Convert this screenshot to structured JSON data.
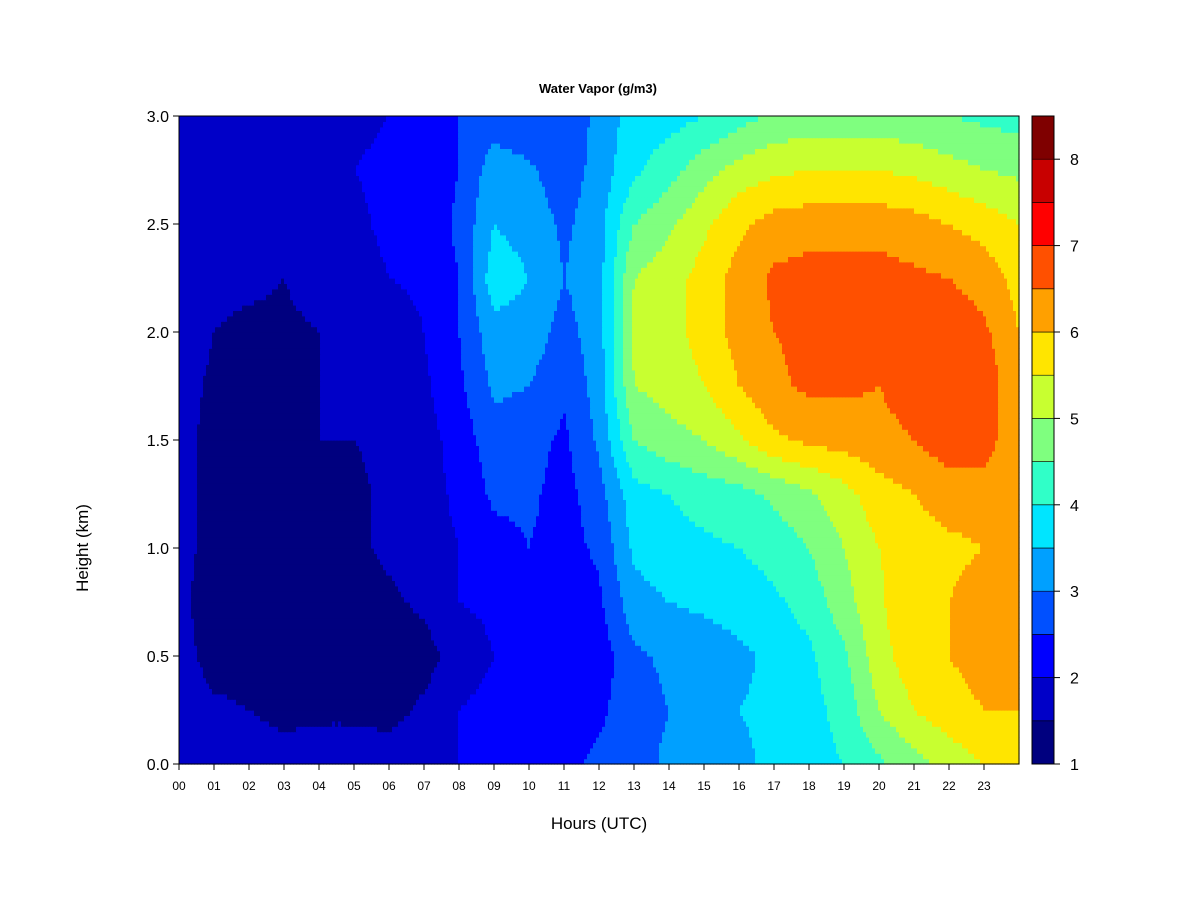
{
  "chart_data": {
    "type": "heatmap",
    "title": "Water Vapor (g/m3)",
    "xlabel": "Hours (UTC)",
    "ylabel": "Height (km)",
    "xlim": [
      0,
      24
    ],
    "ylim": [
      0.0,
      3.0
    ],
    "x_ticks": [
      "00",
      "01",
      "02",
      "03",
      "04",
      "05",
      "06",
      "07",
      "08",
      "09",
      "10",
      "11",
      "12",
      "13",
      "14",
      "15",
      "16",
      "17",
      "18",
      "19",
      "20",
      "21",
      "22",
      "23"
    ],
    "y_ticks": [
      "0.0",
      "0.5",
      "1.0",
      "1.5",
      "2.0",
      "2.5",
      "3.0"
    ],
    "colorbar": {
      "range": [
        1,
        8.5
      ],
      "ticks": [
        "1",
        "2",
        "3",
        "4",
        "5",
        "6",
        "7",
        "8"
      ],
      "colors": [
        "#00007F",
        "#0000C8",
        "#0000FF",
        "#0050FF",
        "#00A0FF",
        "#00E5FF",
        "#30FFC8",
        "#7FFF7F",
        "#C8FF30",
        "#FFE500",
        "#FFA000",
        "#FF5000",
        "#FF0000",
        "#C80000",
        "#7F0000"
      ]
    },
    "z_x": [
      0,
      1,
      2,
      3,
      4,
      5,
      6,
      7,
      8,
      9,
      10,
      11,
      12,
      13,
      14,
      15,
      16,
      17,
      18,
      19,
      20,
      21,
      22,
      23,
      24
    ],
    "z_y": [
      0.0,
      0.25,
      0.5,
      0.75,
      1.0,
      1.25,
      1.5,
      1.75,
      2.0,
      2.25,
      2.5,
      2.75,
      3.0
    ],
    "z": [
      [
        1.5,
        2.0,
        1.9,
        1.8,
        1.8,
        1.8,
        1.8,
        2.0,
        2.0,
        2.5,
        2.4,
        2.4,
        2.6,
        2.8,
        3.1,
        3.3,
        3.4,
        3.6,
        3.8,
        4.0,
        4.4,
        4.8,
        5.2,
        5.5,
        5.5
      ],
      [
        1.8,
        1.6,
        1.5,
        1.3,
        1.4,
        1.4,
        1.3,
        1.6,
        2.0,
        2.2,
        2.5,
        2.3,
        2.4,
        2.8,
        3.0,
        3.3,
        3.5,
        3.6,
        3.8,
        4.2,
        5.0,
        5.5,
        5.8,
        6.0,
        6.0
      ],
      [
        1.7,
        1.3,
        1.3,
        1.2,
        1.2,
        1.2,
        1.2,
        1.3,
        1.7,
        2.0,
        2.2,
        2.0,
        2.2,
        2.9,
        3.1,
        3.2,
        3.4,
        3.6,
        3.9,
        4.4,
        5.3,
        5.8,
        6.0,
        6.2,
        6.2
      ],
      [
        1.6,
        1.3,
        1.3,
        1.3,
        1.3,
        1.3,
        1.4,
        1.6,
        2.0,
        2.1,
        2.4,
        2.1,
        2.4,
        3.3,
        3.5,
        3.6,
        3.7,
        3.9,
        4.2,
        4.8,
        5.4,
        6.0,
        6.0,
        6.2,
        6.2
      ],
      [
        1.6,
        1.4,
        1.4,
        1.4,
        1.4,
        1.4,
        1.6,
        1.8,
        2.0,
        2.3,
        2.5,
        2.3,
        2.6,
        3.6,
        3.8,
        3.9,
        4.0,
        4.2,
        4.5,
        5.0,
        5.5,
        5.8,
        5.9,
        6.0,
        6.0
      ],
      [
        1.6,
        1.4,
        1.4,
        1.4,
        1.4,
        1.4,
        1.6,
        1.8,
        2.1,
        2.6,
        2.6,
        2.3,
        2.8,
        3.8,
        4.0,
        4.2,
        4.3,
        4.6,
        4.9,
        5.3,
        5.8,
        6.0,
        6.2,
        6.2,
        6.0
      ],
      [
        1.6,
        1.4,
        1.4,
        1.4,
        1.5,
        1.5,
        1.6,
        1.8,
        2.2,
        2.8,
        2.7,
        2.4,
        3.1,
        4.5,
        4.8,
        5.0,
        5.4,
        5.9,
        6.1,
        6.2,
        6.3,
        6.5,
        6.8,
        6.8,
        6.0
      ],
      [
        1.7,
        1.4,
        1.4,
        1.4,
        1.5,
        1.5,
        1.6,
        1.9,
        2.4,
        3.1,
        3.0,
        2.6,
        3.2,
        5.0,
        5.2,
        5.5,
        6.0,
        6.4,
        6.6,
        6.6,
        6.5,
        6.8,
        6.9,
        6.9,
        6.0
      ],
      [
        1.8,
        1.5,
        1.4,
        1.4,
        1.5,
        1.6,
        1.7,
        2.0,
        2.5,
        3.3,
        3.3,
        2.8,
        3.3,
        5.1,
        5.3,
        5.7,
        6.2,
        6.5,
        6.6,
        6.6,
        6.6,
        6.8,
        6.8,
        6.6,
        6.0
      ],
      [
        2.0,
        1.6,
        1.6,
        1.5,
        1.7,
        1.8,
        2.0,
        2.1,
        2.5,
        3.8,
        3.5,
        3.0,
        3.3,
        5.0,
        5.3,
        5.7,
        6.2,
        6.6,
        6.7,
        6.7,
        6.7,
        6.6,
        6.5,
        6.3,
        5.8
      ],
      [
        2.0,
        1.8,
        1.8,
        1.8,
        1.9,
        1.9,
        2.1,
        2.2,
        2.6,
        3.5,
        3.3,
        2.9,
        3.3,
        4.5,
        4.9,
        5.4,
        5.9,
        6.2,
        6.3,
        6.3,
        6.3,
        6.2,
        6.0,
        5.8,
        5.5
      ],
      [
        2.0,
        1.7,
        1.8,
        1.9,
        2.0,
        2.0,
        2.1,
        2.2,
        2.5,
        3.3,
        3.1,
        2.7,
        3.2,
        3.9,
        4.3,
        4.8,
        5.2,
        5.4,
        5.5,
        5.5,
        5.5,
        5.4,
        5.2,
        5.0,
        4.9
      ],
      [
        1.9,
        1.7,
        1.6,
        1.8,
        1.9,
        1.9,
        2.0,
        2.2,
        2.5,
        2.7,
        2.6,
        2.5,
        3.2,
        3.7,
        3.8,
        4.0,
        4.3,
        4.6,
        4.7,
        4.7,
        4.7,
        4.6,
        4.5,
        4.4,
        4.3
      ]
    ]
  }
}
